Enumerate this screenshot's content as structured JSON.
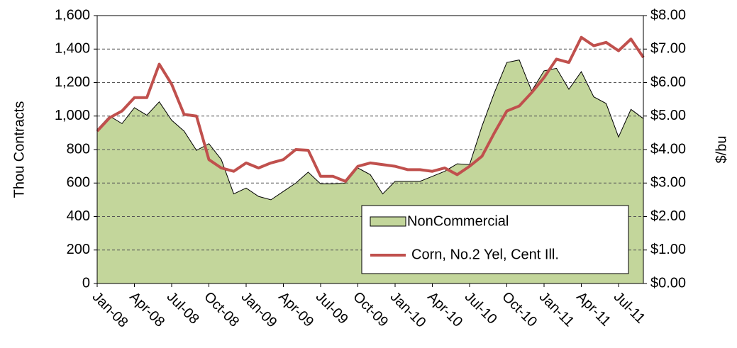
{
  "chart_data": {
    "type": "area-line",
    "y_label": "Thou Contracts",
    "y2_label": "$/bu",
    "categories": [
      "Jan-08",
      null,
      null,
      "Apr-08",
      null,
      null,
      "Jul-08",
      null,
      null,
      "Oct-08",
      null,
      null,
      "Jan-09",
      null,
      null,
      "Apr-09",
      null,
      null,
      "Jul-09",
      null,
      null,
      "Oct-09",
      null,
      null,
      "Jan-10",
      null,
      null,
      "Apr-10",
      null,
      null,
      "Jul-10",
      null,
      null,
      "Oct-10",
      null,
      null,
      "Jan-11",
      null,
      null,
      "Apr-11",
      null,
      null,
      "Jul-11",
      null,
      null
    ],
    "series": [
      {
        "name": "NonCommercial",
        "color": "#c3d69b",
        "values": [
          920,
          1000,
          955,
          1050,
          1005,
          1085,
          975,
          910,
          795,
          835,
          740,
          535,
          570,
          520,
          500,
          550,
          600,
          665,
          595,
          595,
          600,
          690,
          650,
          535,
          610,
          610,
          610,
          640,
          670,
          715,
          710,
          940,
          1140,
          1320,
          1335,
          1150,
          1270,
          1285,
          1160,
          1265,
          1115,
          1075,
          875,
          1040,
          985
        ]
      },
      {
        "name": "Corn, No.2 Yel, Cent Ill.",
        "color": "#c0504d",
        "axis": "y2",
        "values": [
          4.55,
          4.95,
          5.15,
          5.55,
          5.55,
          6.55,
          5.95,
          5.05,
          5.0,
          3.7,
          3.45,
          3.35,
          3.6,
          3.45,
          3.6,
          3.7,
          4.0,
          3.98,
          3.2,
          3.2,
          3.05,
          3.5,
          3.6,
          3.55,
          3.5,
          3.4,
          3.4,
          3.35,
          3.45,
          3.25,
          3.5,
          3.8,
          4.5,
          5.15,
          5.3,
          5.7,
          6.15,
          6.7,
          6.6,
          7.35,
          7.1,
          7.2,
          6.95,
          7.3,
          6.75
        ]
      }
    ],
    "ylim": [
      0,
      1600
    ],
    "yticks": [
      0,
      200,
      400,
      600,
      800,
      {
        "value": 1000,
        "label": "1,000"
      },
      {
        "value": 1200,
        "label": "1,200"
      },
      {
        "value": 1400,
        "label": "1,400"
      },
      {
        "value": 1600,
        "label": "1,600"
      }
    ],
    "y2lim": [
      0,
      8
    ],
    "y2ticks": [
      {
        "value": 0,
        "label": "$0.00"
      },
      {
        "value": 1,
        "label": "$1.00"
      },
      {
        "value": 2,
        "label": "$2.00"
      },
      {
        "value": 3,
        "label": "$3.00"
      },
      {
        "value": 4,
        "label": "$4.00"
      },
      {
        "value": 5,
        "label": "$5.00"
      },
      {
        "value": 6,
        "label": "$6.00"
      },
      {
        "value": 7,
        "label": "$7.00"
      },
      {
        "value": 8,
        "label": "$8.00"
      }
    ],
    "grid": true,
    "legend": "lower right"
  }
}
